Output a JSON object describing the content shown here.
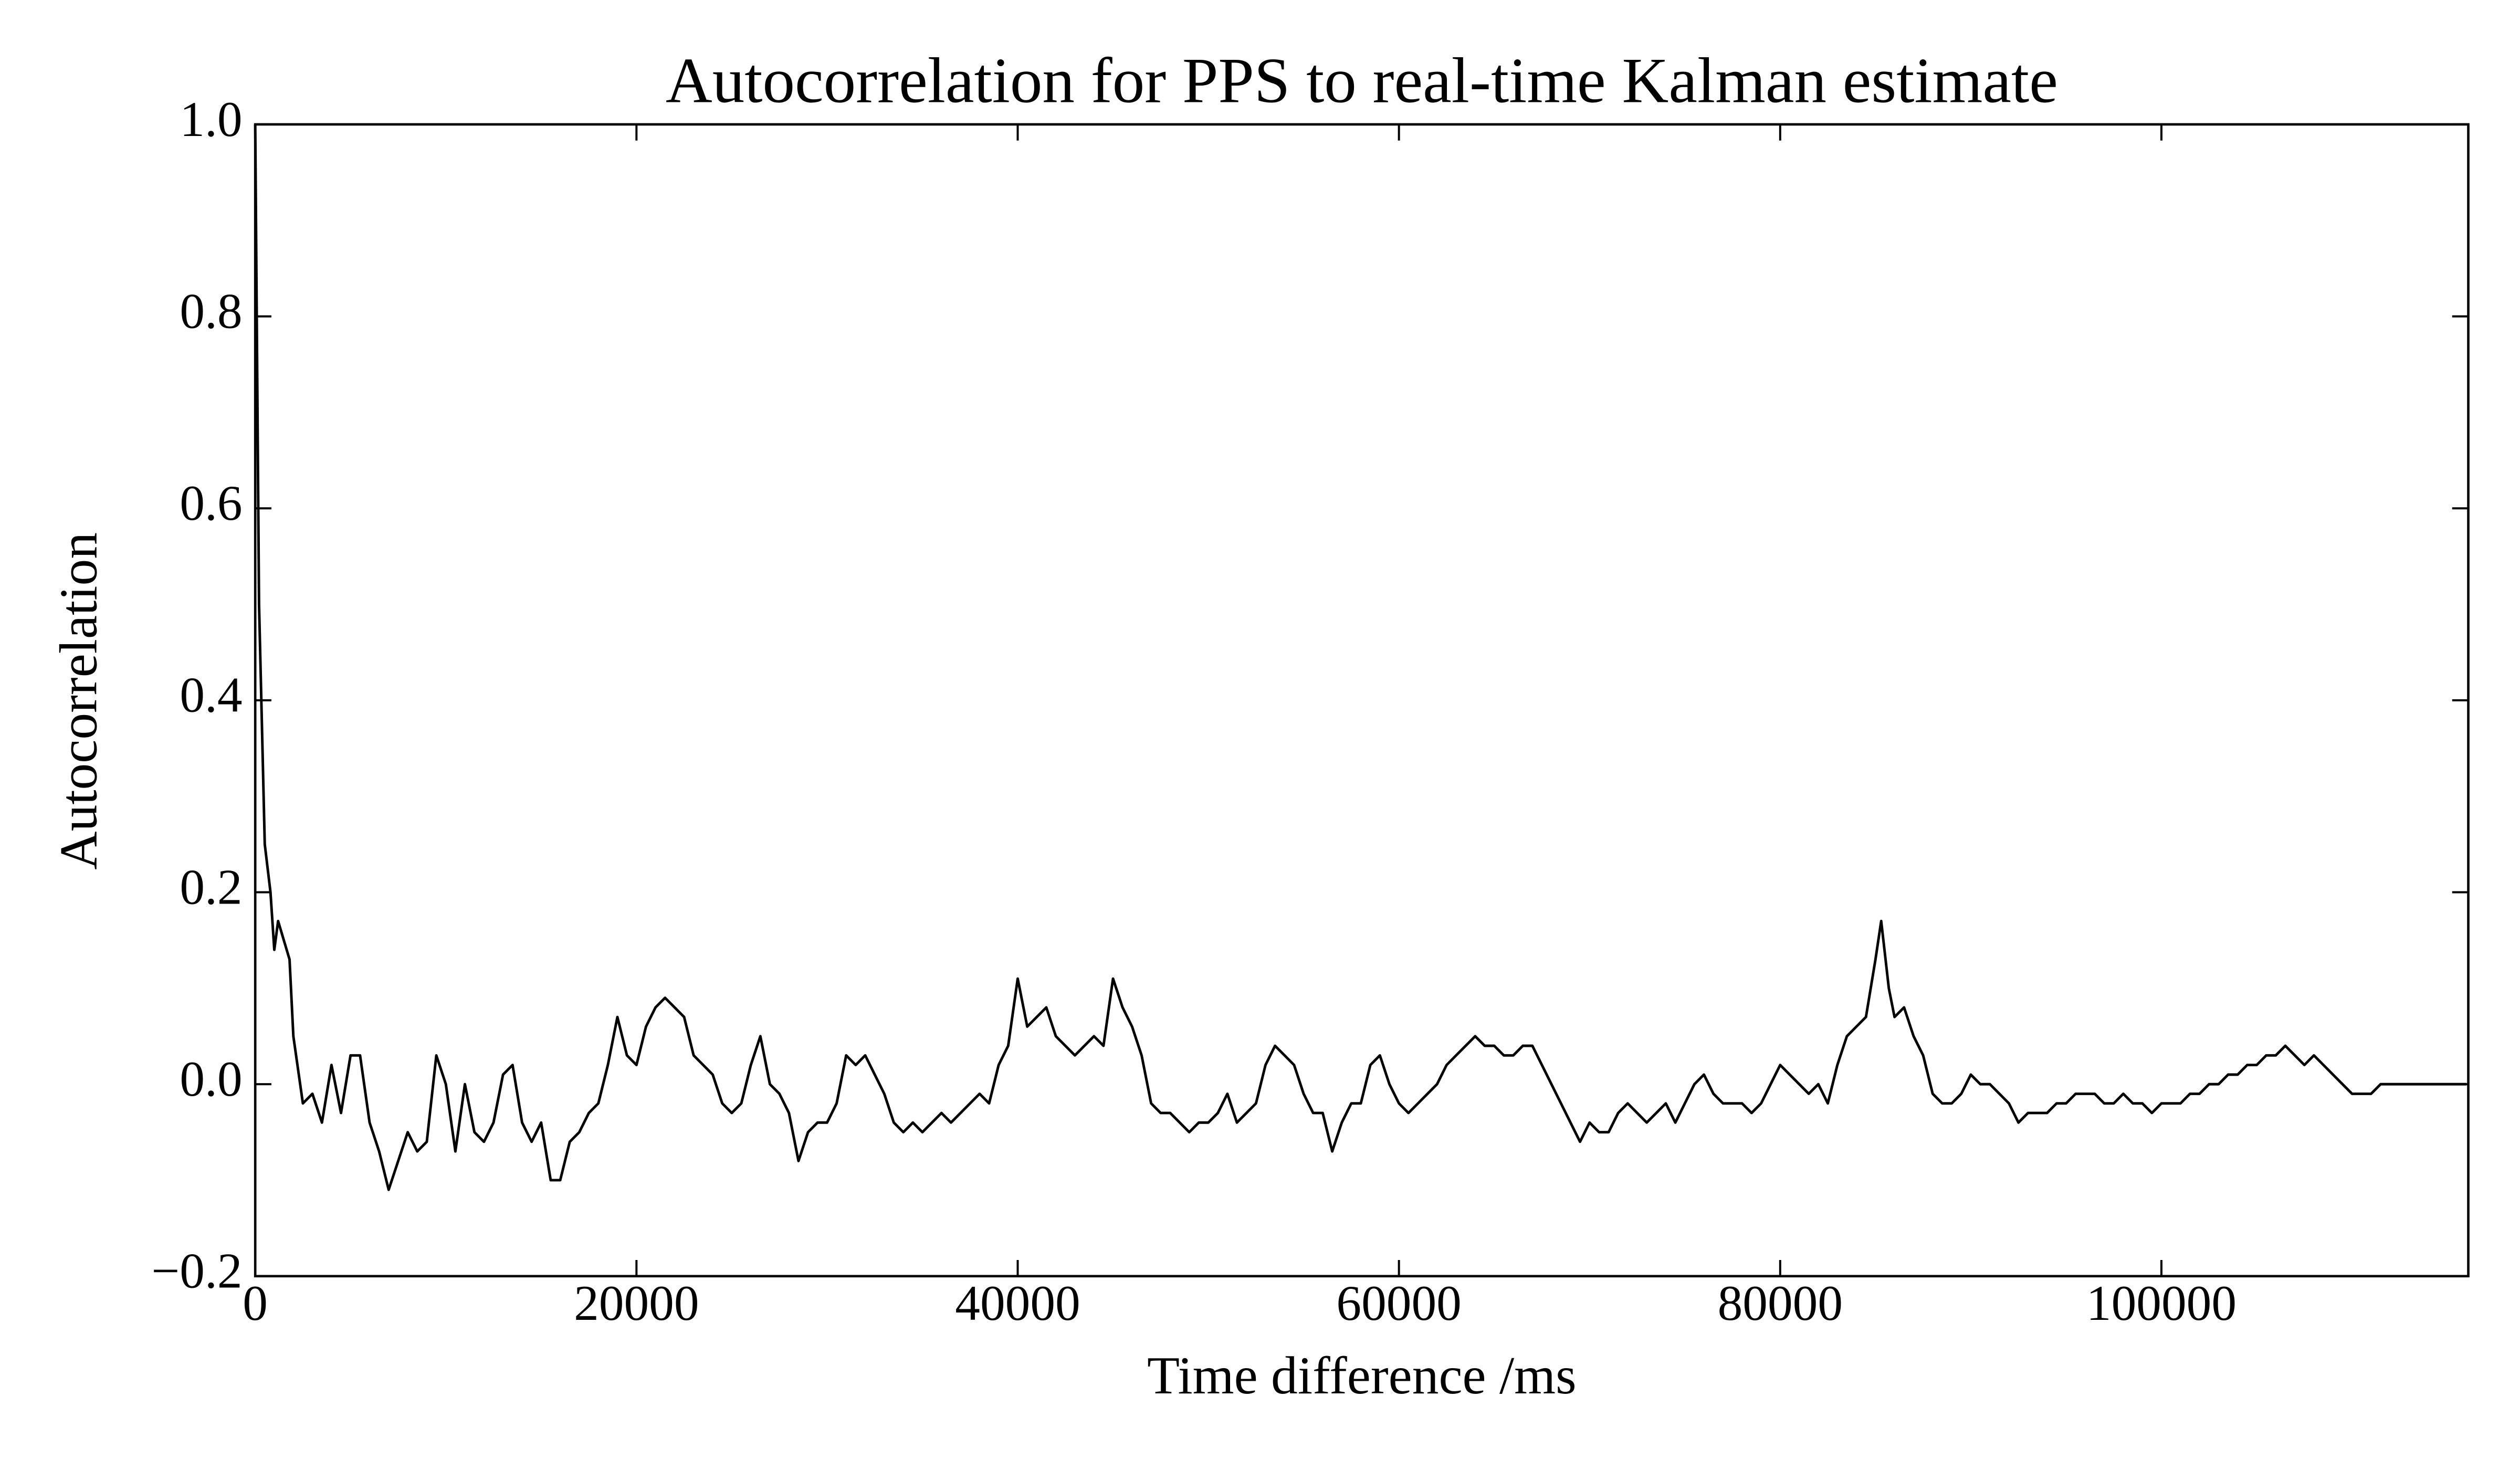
{
  "chart_data": {
    "type": "line",
    "title": "Autocorrelation for PPS to real-time Kalman estimate",
    "xlabel": "Time difference /ms",
    "ylabel": "Autocorrelation",
    "x": [
      0,
      200,
      500,
      800,
      1000,
      1200,
      1500,
      1800,
      2000,
      2500,
      3000,
      3500,
      4000,
      4500,
      5000,
      5500,
      6000,
      6500,
      7000,
      7500,
      8000,
      8500,
      9000,
      9500,
      10000,
      10500,
      11000,
      11500,
      12000,
      12500,
      13000,
      13500,
      14000,
      14500,
      15000,
      15500,
      16000,
      16500,
      17000,
      17500,
      18000,
      18500,
      19000,
      19500,
      20000,
      20500,
      21000,
      21500,
      22000,
      22500,
      23000,
      23500,
      24000,
      24500,
      25000,
      25500,
      26000,
      26500,
      27000,
      27500,
      28000,
      28500,
      29000,
      29500,
      30000,
      30500,
      31000,
      31500,
      32000,
      32500,
      33000,
      33500,
      34000,
      34500,
      35000,
      35500,
      36000,
      36500,
      37000,
      37500,
      38000,
      38500,
      39000,
      39500,
      40000,
      40500,
      41000,
      41500,
      42000,
      42500,
      43000,
      43500,
      44000,
      44500,
      45000,
      45500,
      46000,
      46500,
      47000,
      47500,
      48000,
      48500,
      49000,
      49500,
      50000,
      50500,
      51000,
      51500,
      52000,
      52500,
      53000,
      53500,
      54000,
      54500,
      55000,
      55500,
      56000,
      56500,
      57000,
      57500,
      58000,
      58500,
      59000,
      59500,
      60000,
      60500,
      61000,
      61500,
      62000,
      62500,
      63000,
      63500,
      64000,
      64500,
      65000,
      65500,
      66000,
      66500,
      67000,
      67500,
      68000,
      68500,
      69000,
      69500,
      70000,
      70500,
      71000,
      71500,
      72000,
      72500,
      73000,
      73500,
      74000,
      74500,
      75000,
      75500,
      76000,
      76500,
      77000,
      77500,
      78000,
      78500,
      79000,
      79500,
      80000,
      80500,
      81000,
      81500,
      82000,
      82500,
      83000,
      83500,
      84000,
      84500,
      85000,
      85300,
      85700,
      86000,
      86500,
      87000,
      87500,
      88000,
      88500,
      89000,
      89500,
      90000,
      90500,
      91000,
      91500,
      92000,
      92500,
      93000,
      93500,
      94000,
      94500,
      95000,
      95500,
      96000,
      96500,
      97000,
      97500,
      98000,
      98500,
      99000,
      99500,
      100000,
      100500,
      101000,
      101500,
      102000,
      102500,
      103000,
      103500,
      104000,
      104500,
      105000,
      105500,
      106000,
      106500,
      107000,
      107500,
      108000,
      108500,
      109000,
      109500,
      110000,
      110500,
      111000,
      111500,
      112000,
      112500,
      113000,
      113500,
      114000,
      114500,
      115000,
      115500,
      116000
    ],
    "series": [
      {
        "name": "Autocorrelation",
        "color": "#000000",
        "values": [
          1.0,
          0.5,
          0.25,
          0.2,
          0.14,
          0.17,
          0.15,
          0.13,
          0.05,
          -0.02,
          -0.01,
          -0.04,
          0.02,
          -0.03,
          0.03,
          0.03,
          -0.04,
          -0.07,
          -0.11,
          -0.08,
          -0.05,
          -0.07,
          -0.06,
          0.03,
          0.0,
          -0.07,
          0.0,
          -0.05,
          -0.06,
          -0.04,
          0.01,
          0.02,
          -0.04,
          -0.06,
          -0.04,
          -0.1,
          -0.1,
          -0.06,
          -0.05,
          -0.03,
          -0.02,
          0.02,
          0.07,
          0.03,
          0.02,
          0.06,
          0.08,
          0.09,
          0.08,
          0.07,
          0.03,
          0.02,
          0.01,
          -0.02,
          -0.03,
          -0.02,
          0.02,
          0.05,
          0.0,
          -0.01,
          -0.03,
          -0.08,
          -0.05,
          -0.04,
          -0.04,
          -0.02,
          0.03,
          0.02,
          0.03,
          0.01,
          -0.01,
          -0.04,
          -0.05,
          -0.04,
          -0.05,
          -0.04,
          -0.03,
          -0.04,
          -0.03,
          -0.02,
          -0.01,
          -0.02,
          0.02,
          0.04,
          0.11,
          0.06,
          0.07,
          0.08,
          0.05,
          0.04,
          0.03,
          0.04,
          0.05,
          0.04,
          0.11,
          0.08,
          0.06,
          0.03,
          -0.02,
          -0.03,
          -0.03,
          -0.04,
          -0.05,
          -0.04,
          -0.04,
          -0.03,
          -0.01,
          -0.04,
          -0.03,
          -0.02,
          0.02,
          0.04,
          0.03,
          0.02,
          -0.01,
          -0.03,
          -0.03,
          -0.07,
          -0.04,
          -0.02,
          -0.02,
          0.02,
          0.03,
          0.0,
          -0.02,
          -0.03,
          -0.02,
          -0.01,
          0.0,
          0.02,
          0.03,
          0.04,
          0.05,
          0.04,
          0.04,
          0.03,
          0.03,
          0.04,
          0.04,
          0.02,
          0.0,
          -0.02,
          -0.04,
          -0.06,
          -0.04,
          -0.05,
          -0.05,
          -0.03,
          -0.02,
          -0.03,
          -0.04,
          -0.03,
          -0.02,
          -0.04,
          -0.02,
          0.0,
          0.01,
          -0.01,
          -0.02,
          -0.02,
          -0.02,
          -0.03,
          -0.02,
          0.0,
          0.02,
          0.01,
          0.0,
          -0.01,
          0.0,
          -0.02,
          0.02,
          0.05,
          0.06,
          0.07,
          0.13,
          0.17,
          0.1,
          0.07,
          0.08,
          0.05,
          0.03,
          -0.01,
          -0.02,
          -0.02,
          -0.01,
          0.01,
          0.0,
          0.0,
          -0.01,
          -0.02,
          -0.04,
          -0.03,
          -0.03,
          -0.03,
          -0.02,
          -0.02,
          -0.01,
          -0.01,
          -0.01,
          -0.02,
          -0.02,
          -0.01,
          -0.02,
          -0.02,
          -0.03,
          -0.02,
          -0.02,
          -0.02,
          -0.01,
          -0.01,
          0.0,
          0.0,
          0.01,
          0.01,
          0.02,
          0.02,
          0.03,
          0.03,
          0.04,
          0.03,
          0.02,
          0.03,
          0.02,
          0.01,
          0.0,
          -0.01,
          -0.01,
          -0.01,
          0.0,
          0.0,
          0.0,
          0.0,
          0.0,
          0.0,
          0.0,
          0.0,
          0.0,
          0.0
        ]
      }
    ],
    "xlim": [
      0,
      116100
    ],
    "ylim": [
      -0.2,
      1.0
    ],
    "xticks": [
      0,
      20000,
      40000,
      60000,
      80000,
      100000
    ],
    "yticks": [
      {
        "value": -0.2,
        "label": "−0.2"
      },
      {
        "value": 0,
        "label": "0.0"
      },
      0.2,
      0.4,
      0.6,
      0.8,
      {
        "value": 1,
        "label": "1.0"
      }
    ],
    "grid": false
  }
}
